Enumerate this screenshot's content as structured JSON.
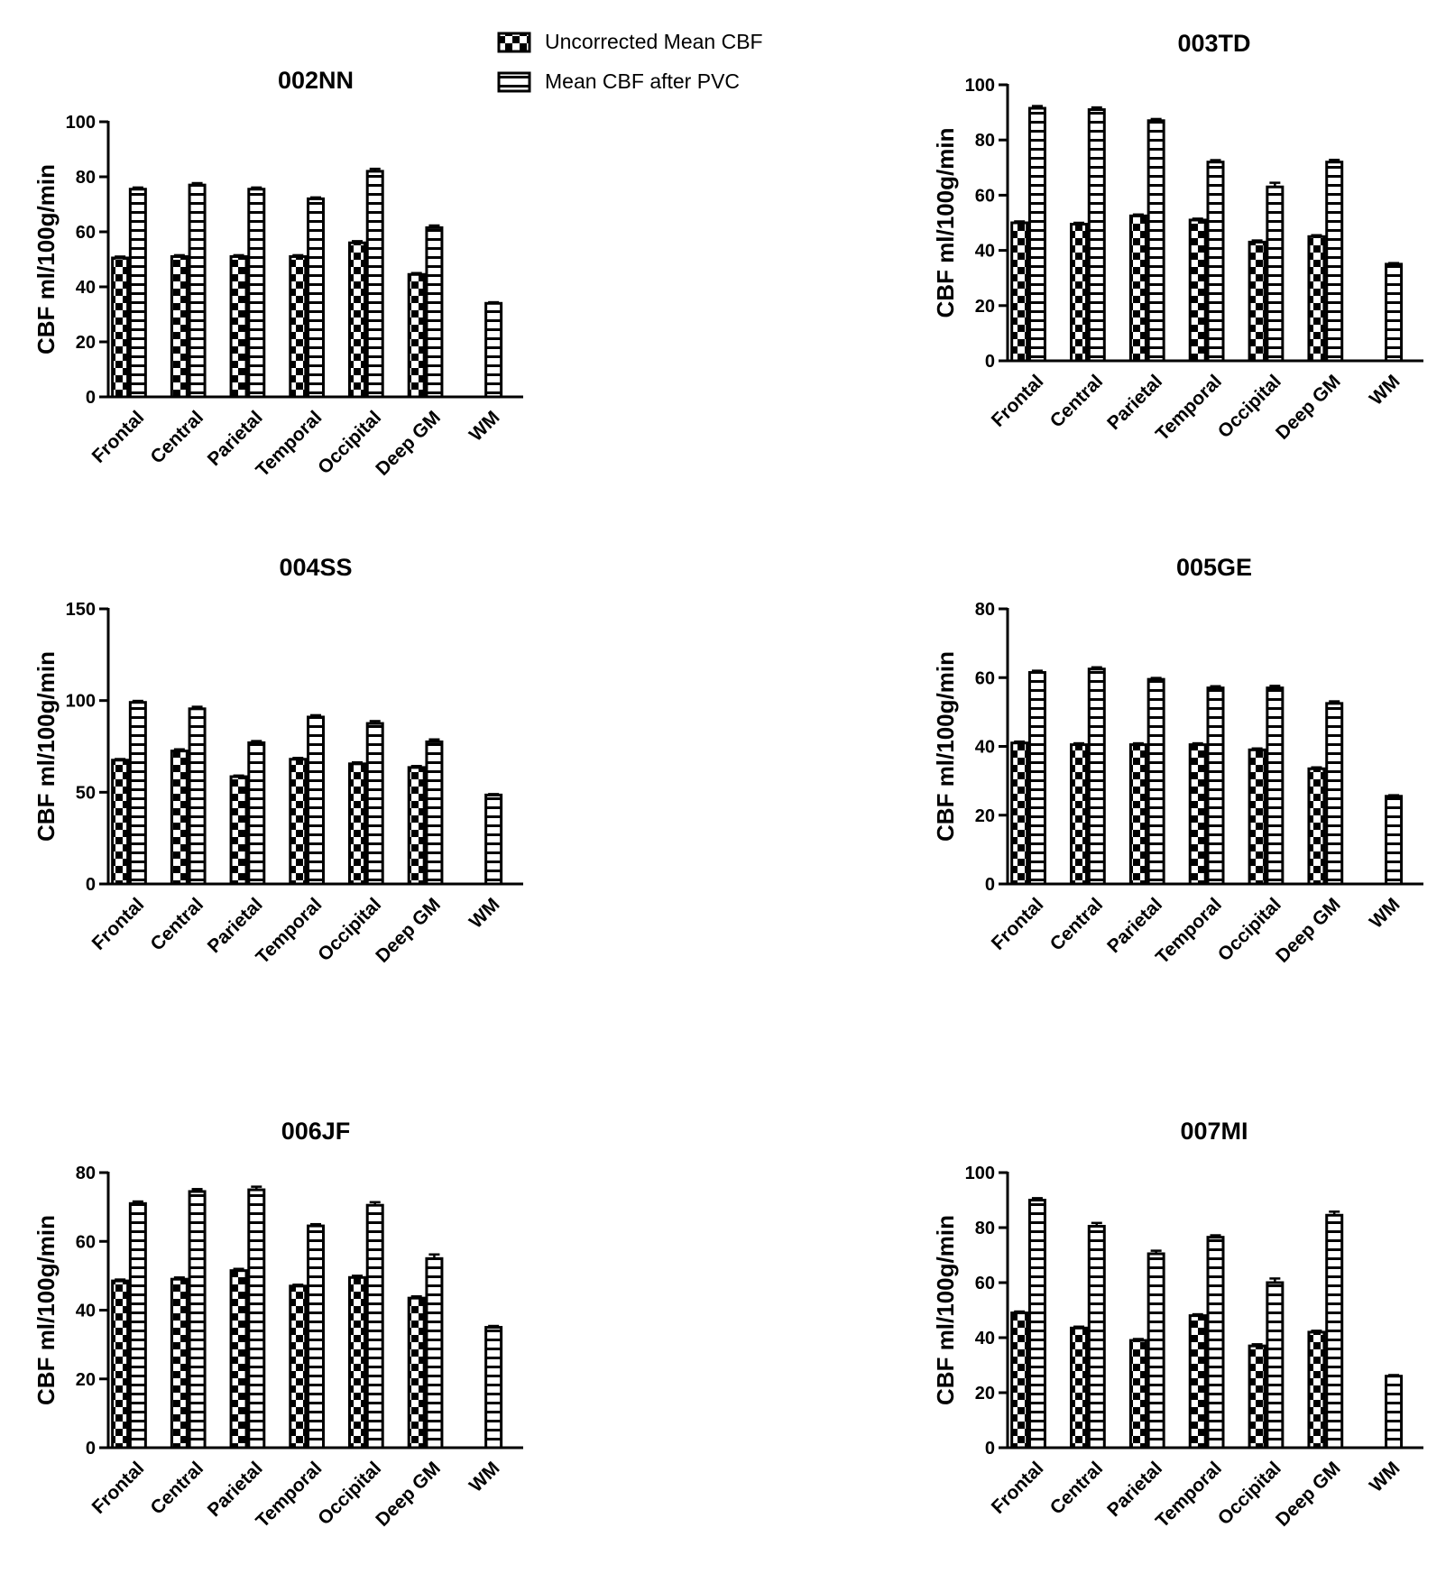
{
  "legend": {
    "series": [
      {
        "name": "Uncorrected Mean CBF",
        "pattern": "checker"
      },
      {
        "name": "Mean CBF after PVC",
        "pattern": "hstripe"
      }
    ]
  },
  "chart_data": [
    {
      "type": "bar",
      "title": "002NN",
      "ylabel": "CBF ml/100g/min",
      "xlabel": "",
      "ylim": [
        0,
        100
      ],
      "yticks": [
        0,
        20,
        40,
        60,
        80,
        100
      ],
      "categories": [
        "Frontal",
        "Central",
        "Parietal",
        "Temporal",
        "Occipital",
        "Deep GM",
        "WM"
      ],
      "series": [
        {
          "name": "Uncorrected Mean CBF",
          "values": [
            50.5,
            51,
            51,
            51,
            56,
            44.5,
            null
          ],
          "errors": [
            0.5,
            0.5,
            0.5,
            0.5,
            0.6,
            0.5,
            null
          ]
        },
        {
          "name": "Mean CBF after PVC",
          "values": [
            75.5,
            77,
            75.5,
            72,
            82,
            61.5,
            34
          ],
          "errors": [
            0.6,
            0.7,
            0.6,
            0.5,
            0.9,
            0.8,
            0.4
          ]
        }
      ]
    },
    {
      "type": "bar",
      "title": "003TD",
      "ylabel": "CBF ml/100g/min",
      "xlabel": "",
      "ylim": [
        0,
        100
      ],
      "yticks": [
        0,
        20,
        40,
        60,
        80,
        100
      ],
      "categories": [
        "Frontal",
        "Central",
        "Parietal",
        "Temporal",
        "Occipital",
        "Deep GM",
        "WM"
      ],
      "series": [
        {
          "name": "Uncorrected Mean CBF",
          "values": [
            50,
            49.5,
            52.5,
            51,
            43,
            45,
            null
          ],
          "errors": [
            0.5,
            0.5,
            0.5,
            0.5,
            0.6,
            0.5,
            null
          ]
        },
        {
          "name": "Mean CBF after PVC",
          "values": [
            91.5,
            91,
            87,
            72,
            63,
            72,
            35
          ],
          "errors": [
            0.8,
            0.8,
            0.6,
            0.7,
            1.5,
            0.8,
            0.4
          ]
        }
      ]
    },
    {
      "type": "bar",
      "title": "004SS",
      "ylabel": "CBF ml/100g/min",
      "xlabel": "",
      "ylim": [
        0,
        150
      ],
      "yticks": [
        0,
        50,
        100,
        150
      ],
      "categories": [
        "Frontal",
        "Central",
        "Parietal",
        "Temporal",
        "Occipital",
        "Deep GM",
        "WM"
      ],
      "series": [
        {
          "name": "Uncorrected Mean CBF",
          "values": [
            67.5,
            72.5,
            58.5,
            68,
            65.5,
            63.5,
            null
          ],
          "errors": [
            0.6,
            0.9,
            0.6,
            0.7,
            0.8,
            0.8,
            null
          ]
        },
        {
          "name": "Mean CBF after PVC",
          "values": [
            99,
            95.5,
            77,
            91,
            87.5,
            77.5,
            48.5
          ],
          "errors": [
            0.8,
            1.1,
            0.9,
            1,
            1.3,
            1.3,
            0.5
          ]
        }
      ]
    },
    {
      "type": "bar",
      "title": "005GE",
      "ylabel": "CBF ml/100g/min",
      "xlabel": "",
      "ylim": [
        0,
        80
      ],
      "yticks": [
        0,
        20,
        40,
        60,
        80
      ],
      "categories": [
        "Frontal",
        "Central",
        "Parietal",
        "Temporal",
        "Occipital",
        "Deep GM",
        "WM"
      ],
      "series": [
        {
          "name": "Uncorrected Mean CBF",
          "values": [
            41,
            40.5,
            40.5,
            40.5,
            39,
            33.5,
            null
          ],
          "errors": [
            0.4,
            0.4,
            0.4,
            0.4,
            0.4,
            0.4,
            null
          ]
        },
        {
          "name": "Mean CBF after PVC",
          "values": [
            61.5,
            62.5,
            59.5,
            57,
            57,
            52.5,
            25.5
          ],
          "errors": [
            0.5,
            0.5,
            0.4,
            0.5,
            0.6,
            0.6,
            0.3
          ]
        }
      ]
    },
    {
      "type": "bar",
      "title": "006JF",
      "ylabel": "CBF ml/100g/min",
      "xlabel": "",
      "ylim": [
        0,
        80
      ],
      "yticks": [
        0,
        20,
        40,
        60,
        80
      ],
      "categories": [
        "Frontal",
        "Central",
        "Parietal",
        "Temporal",
        "Occipital",
        "Deep GM",
        "WM"
      ],
      "series": [
        {
          "name": "Uncorrected Mean CBF",
          "values": [
            48.5,
            49,
            51.5,
            47,
            49.5,
            43.5,
            null
          ],
          "errors": [
            0.4,
            0.5,
            0.5,
            0.4,
            0.5,
            0.5,
            null
          ]
        },
        {
          "name": "Mean CBF after PVC",
          "values": [
            71,
            74.5,
            75,
            64.5,
            70.5,
            55,
            35
          ],
          "errors": [
            0.6,
            0.7,
            0.9,
            0.5,
            0.9,
            1.2,
            0.4
          ]
        }
      ]
    },
    {
      "type": "bar",
      "title": "007MI",
      "ylabel": "CBF ml/100g/min",
      "xlabel": "",
      "ylim": [
        0,
        100
      ],
      "yticks": [
        0,
        20,
        40,
        60,
        80,
        100
      ],
      "categories": [
        "Frontal",
        "Central",
        "Parietal",
        "Temporal",
        "Occipital",
        "Deep GM",
        "WM"
      ],
      "series": [
        {
          "name": "Uncorrected Mean CBF",
          "values": [
            49,
            43.5,
            39,
            48,
            37,
            42,
            null
          ],
          "errors": [
            0.5,
            0.5,
            0.5,
            0.5,
            0.6,
            0.5,
            null
          ]
        },
        {
          "name": "Mean CBF after PVC",
          "values": [
            90,
            80.5,
            70.5,
            76.5,
            60,
            84.5,
            26
          ],
          "errors": [
            0.7,
            1.2,
            1.1,
            0.7,
            1.5,
            1.3,
            0.4
          ]
        }
      ]
    }
  ]
}
